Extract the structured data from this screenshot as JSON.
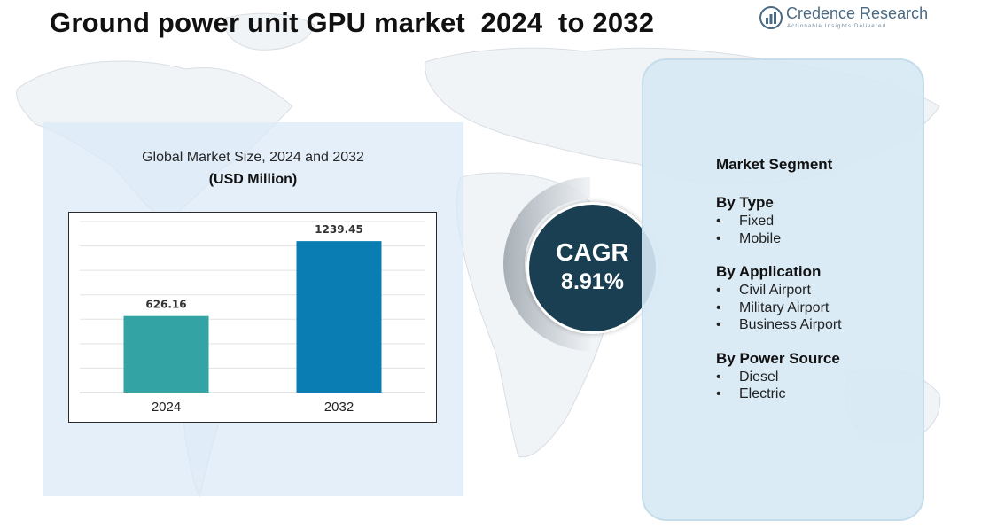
{
  "title": "Ground power unit GPU market  2024  to 2032",
  "logo": {
    "name": "Credence Research",
    "tagline": "Actionable Insights Delivered"
  },
  "colors": {
    "bar_2024": "#33a3a3",
    "bar_2032": "#0a7db3",
    "cagr_circle": "#1a3f52",
    "panel_bg": "#dae9f6"
  },
  "chart_data": {
    "type": "bar",
    "title": "Global Market Size, 2024 and 2032",
    "ylabel": "(USD Million)",
    "xlabel": "",
    "categories": [
      "2024",
      "2032"
    ],
    "values": [
      626.16,
      1239.45
    ],
    "value_labels": [
      "626.16",
      "1239.45"
    ],
    "ylim": [
      0,
      1400
    ],
    "grid": true
  },
  "cagr": {
    "label": "CAGR",
    "value": "8.91%"
  },
  "segments": {
    "title": "Market Segment",
    "groups": [
      {
        "title": "By Type",
        "items": [
          "Fixed",
          "Mobile"
        ]
      },
      {
        "title": "By Application",
        "items": [
          "Civil Airport",
          "Military Airport",
          "Business Airport"
        ]
      },
      {
        "title": "By Power Source",
        "items": [
          "Diesel",
          "Electric"
        ]
      }
    ]
  }
}
